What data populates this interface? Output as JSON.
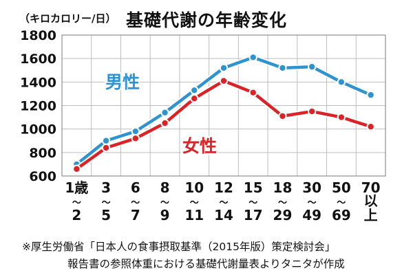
{
  "title": "基礎代謝の年齢変化",
  "unit_label": "（キロカロリー/日）",
  "footnote": {
    "line1": "※厚生労働省「日本人の食事摂取基準（2015年版）策定検討会」",
    "line2": "報告書の参照体重における基礎代謝量表よりタニタが作成"
  },
  "colors": {
    "male": "#2f93cf",
    "female": "#d92326",
    "grid": "#bdbdbd",
    "plot_bg": "#ffffff"
  },
  "chart_data": {
    "type": "line",
    "title": "基礎代謝の年齢変化",
    "ylabel": "（キロカロリー/日）",
    "ylim": [
      600,
      1800
    ],
    "yticks": [
      600,
      800,
      1000,
      1200,
      1400,
      1600,
      1800
    ],
    "grid": true,
    "categories": [
      [
        "1歳",
        "～",
        "2"
      ],
      [
        "3",
        "～",
        "5"
      ],
      [
        "6",
        "～",
        "7"
      ],
      [
        "8",
        "～",
        "9"
      ],
      [
        "10",
        "～",
        "11"
      ],
      [
        "12",
        "～",
        "14"
      ],
      [
        "15",
        "～",
        "17"
      ],
      [
        "18",
        "～",
        "29"
      ],
      [
        "30",
        "～",
        "49"
      ],
      [
        "50",
        "～",
        "69"
      ],
      [
        "70",
        "以",
        "上"
      ]
    ],
    "series": [
      {
        "name": "男性",
        "color": "#2f93cf",
        "values": [
          700,
          900,
          980,
          1140,
          1330,
          1520,
          1610,
          1520,
          1530,
          1400,
          1290
        ]
      },
      {
        "name": "女性",
        "color": "#d92326",
        "values": [
          660,
          840,
          920,
          1050,
          1260,
          1410,
          1310,
          1110,
          1150,
          1100,
          1020
        ]
      }
    ]
  }
}
